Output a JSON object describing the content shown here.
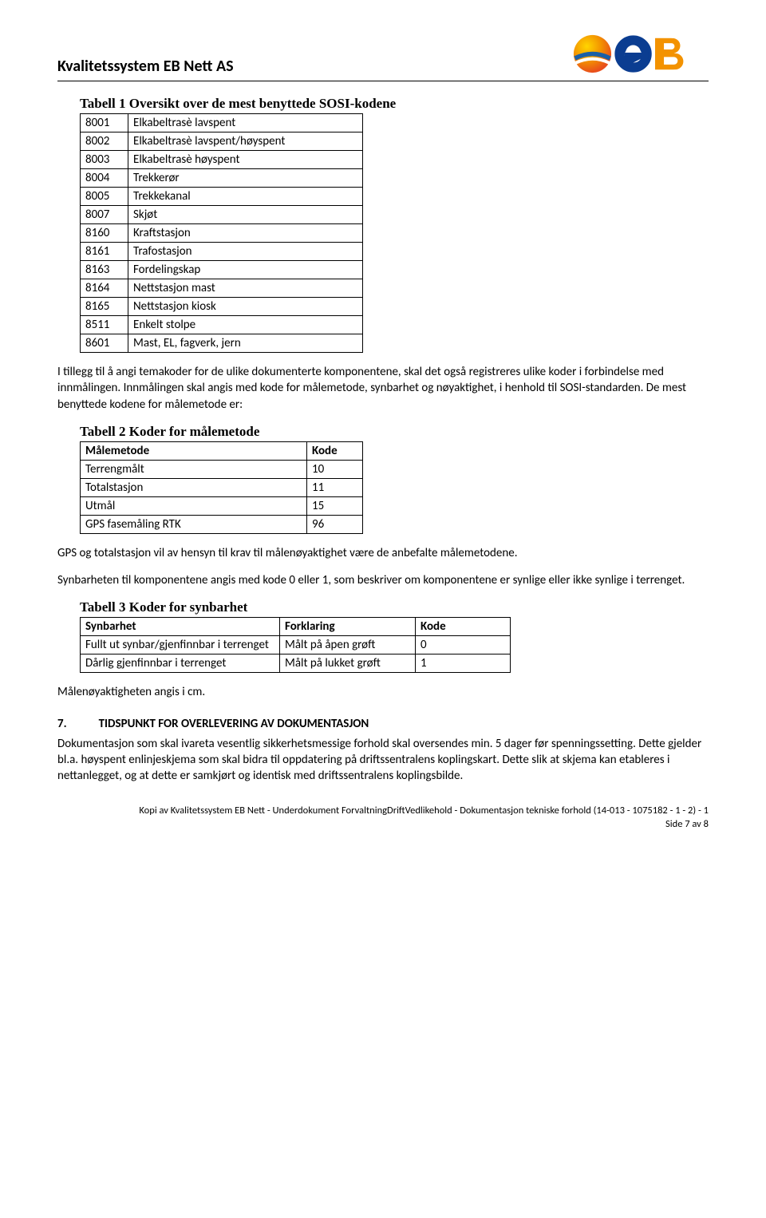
{
  "header": {
    "title": "Kvalitetssystem EB Nett AS",
    "logo_colors": {
      "blue": "#1b5fa6",
      "orange": "#f39200",
      "dark_orange": "#e94e1b",
      "yellow": "#ffd500",
      "navy": "#0b3d91"
    }
  },
  "table1": {
    "caption": "Tabell 1 Oversikt over de mest benyttede SOSI-kodene",
    "rows": [
      {
        "code": "8001",
        "desc": "Elkabeltrasè lavspent"
      },
      {
        "code": "8002",
        "desc": "Elkabeltrasè lavspent/høyspent"
      },
      {
        "code": "8003",
        "desc": "Elkabeltrasè høyspent"
      },
      {
        "code": "8004",
        "desc": "Trekkerør"
      },
      {
        "code": "8005",
        "desc": "Trekkekanal"
      },
      {
        "code": "8007",
        "desc": "Skjøt"
      },
      {
        "code": "8160",
        "desc": "Kraftstasjon"
      },
      {
        "code": "8161",
        "desc": "Trafostasjon"
      },
      {
        "code": "8163",
        "desc": "Fordelingskap"
      },
      {
        "code": "8164",
        "desc": "Nettstasjon mast"
      },
      {
        "code": "8165",
        "desc": "Nettstasjon kiosk"
      },
      {
        "code": "8511",
        "desc": "Enkelt stolpe"
      },
      {
        "code": "8601",
        "desc": "Mast, EL, fagverk, jern"
      }
    ]
  },
  "para1": "I tillegg til å angi temakoder for de ulike dokumenterte komponentene, skal det også registreres ulike koder i forbindelse med innmålingen. Innmålingen skal angis med kode for målemetode, synbarhet og nøyaktighet, i henhold til SOSI-standarden. De mest benyttede kodene for målemetode er:",
  "table2": {
    "caption": "Tabell 2 Koder for målemetode",
    "head": {
      "c1": "Målemetode",
      "c2": "Kode"
    },
    "rows": [
      {
        "c1": "Terrengmålt",
        "c2": "10"
      },
      {
        "c1": "Totalstasjon",
        "c2": "11"
      },
      {
        "c1": "Utmål",
        "c2": "15"
      },
      {
        "c1": "GPS fasemåling RTK",
        "c2": "96"
      }
    ]
  },
  "para2": "GPS og totalstasjon vil av hensyn til krav til målenøyaktighet være de anbefalte målemetodene.",
  "para3": "Synbarheten til komponentene angis med kode 0 eller 1, som beskriver om komponentene er synlige eller ikke synlige i terrenget.",
  "table3": {
    "caption": "Tabell 3 Koder for synbarhet",
    "head": {
      "c1": "Synbarhet",
      "c2": "Forklaring",
      "c3": "Kode"
    },
    "rows": [
      {
        "c1": "Fullt ut synbar/gjenfinnbar i terrenget",
        "c2": "Målt på åpen grøft",
        "c3": "0"
      },
      {
        "c1": "Dårlig gjenfinnbar i terrenget",
        "c2": "Målt på lukket grøft",
        "c3": "1"
      }
    ]
  },
  "para4": "Målenøyaktigheten angis i cm.",
  "section7": {
    "num": "7.",
    "title": "TIDSPUNKT FOR OVERLEVERING AV DOKUMENTASJON"
  },
  "para5": "Dokumentasjon som skal ivareta vesentlig sikkerhetsmessige forhold skal oversendes min. 5 dager før spenningssetting. Dette gjelder bl.a. høyspent enlinjeskjema som skal bidra til oppdatering på driftssentralens koplingskart. Dette slik at skjema kan etableres i nettanlegget, og at dette er samkjørt og identisk med driftssentralens koplingsbilde.",
  "footer": {
    "line1": "Kopi av Kvalitetssystem EB Nett - Underdokument ForvaltningDriftVedlikehold - Dokumentasjon tekniske forhold (14-013 - 1075182 - 1 - 2) - 1",
    "line2": "Side 7 av 8"
  }
}
